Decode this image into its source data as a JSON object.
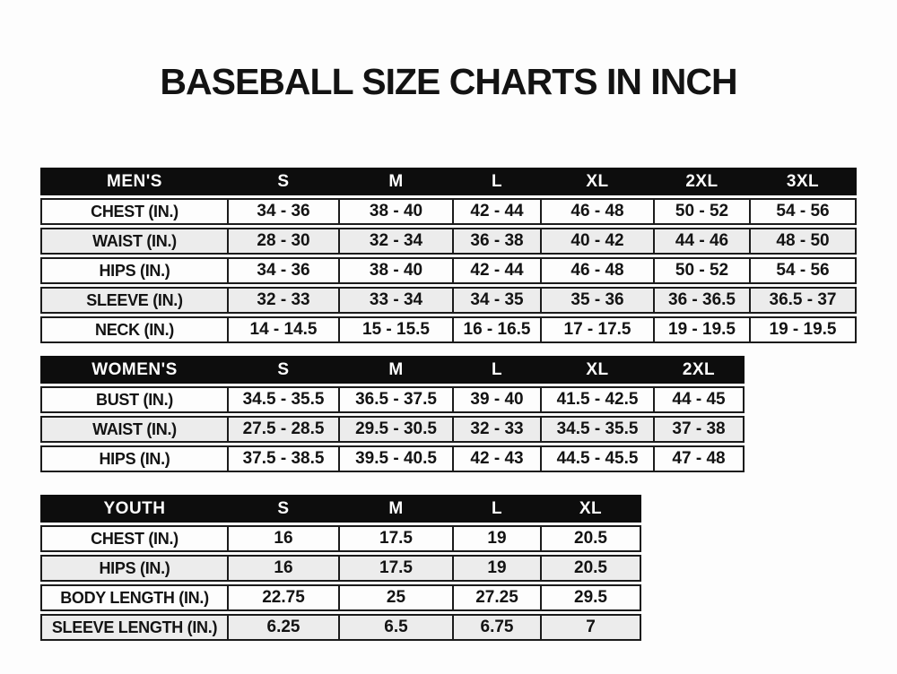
{
  "title": "BASEBALL SIZE CHARTS IN INCH",
  "colors": {
    "header_bg": "#0d0d0d",
    "header_text": "#ffffff",
    "alt_row_bg": "#ececec",
    "border": "#1b1b1b",
    "text": "#131313"
  },
  "chart_data": [
    {
      "type": "table",
      "id": "mens",
      "group_label": "MEN'S",
      "columns": [
        "MEN'S",
        "S",
        "M",
        "L",
        "XL",
        "2XL",
        "3XL"
      ],
      "rows": [
        [
          "CHEST (IN.)",
          "34 - 36",
          "38 - 40",
          "42 - 44",
          "46 - 48",
          "50 - 52",
          "54 - 56"
        ],
        [
          "WAIST (IN.)",
          "28 - 30",
          "32 - 34",
          "36 - 38",
          "40 - 42",
          "44 - 46",
          "48 - 50"
        ],
        [
          "HIPS (IN.)",
          "34 - 36",
          "38 - 40",
          "42 - 44",
          "46 - 48",
          "50 - 52",
          "54 - 56"
        ],
        [
          "SLEEVE (IN.)",
          "32 - 33",
          "33 - 34",
          "34 - 35",
          "35 - 36",
          "36 - 36.5",
          "36.5 - 37"
        ],
        [
          "NECK (IN.)",
          "14 - 14.5",
          "15 - 15.5",
          "16 - 16.5",
          "17 - 17.5",
          "19 - 19.5",
          "19 - 19.5"
        ]
      ]
    },
    {
      "type": "table",
      "id": "womens",
      "group_label": "WOMEN'S",
      "columns": [
        "WOMEN'S",
        "S",
        "M",
        "L",
        "XL",
        "2XL"
      ],
      "rows": [
        [
          "BUST (IN.)",
          "34.5 - 35.5",
          "36.5 - 37.5",
          "39 - 40",
          "41.5 - 42.5",
          "44 - 45"
        ],
        [
          "WAIST (IN.)",
          "27.5 - 28.5",
          "29.5 - 30.5",
          "32 - 33",
          "34.5 - 35.5",
          "37 - 38"
        ],
        [
          "HIPS (IN.)",
          "37.5 - 38.5",
          "39.5 - 40.5",
          "42 - 43",
          "44.5 - 45.5",
          "47 - 48"
        ]
      ]
    },
    {
      "type": "table",
      "id": "youth",
      "group_label": "YOUTH",
      "columns": [
        "YOUTH",
        "S",
        "M",
        "L",
        "XL"
      ],
      "rows": [
        [
          "CHEST (IN.)",
          "16",
          "17.5",
          "19",
          "20.5"
        ],
        [
          "HIPS (IN.)",
          "16",
          "17.5",
          "19",
          "20.5"
        ],
        [
          "BODY LENGTH (IN.)",
          "22.75",
          "25",
          "27.25",
          "29.5"
        ],
        [
          "SLEEVE LENGTH (IN.)",
          "6.25",
          "6.5",
          "6.75",
          "7"
        ]
      ]
    }
  ]
}
